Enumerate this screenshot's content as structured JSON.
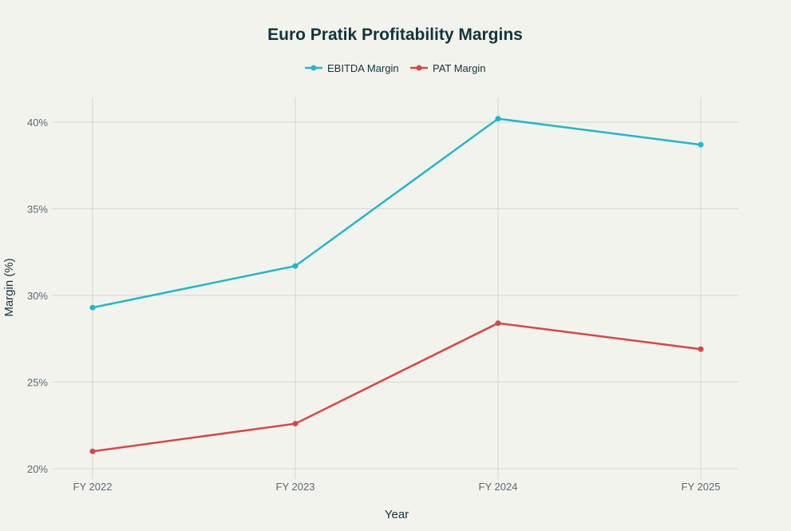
{
  "chart_data": {
    "type": "line",
    "title": "Euro Pratik Profitability Margins",
    "xlabel": "Year",
    "ylabel": "Margin (%)",
    "categories": [
      "FY 2022",
      "FY 2023",
      "FY 2024",
      "FY 2025"
    ],
    "series": [
      {
        "name": "EBITDA Margin",
        "color": "#1FB8CD",
        "values": [
          29.3,
          31.7,
          40.2,
          38.7
        ]
      },
      {
        "name": "PAT Margin",
        "color": "#DB4545",
        "values": [
          21.0,
          22.6,
          28.4,
          26.9
        ]
      }
    ],
    "ylim": [
      20,
      41.5
    ],
    "yticks": [
      20,
      25,
      30,
      35,
      40
    ],
    "ytick_labels": [
      "20%",
      "25%",
      "30%",
      "35%",
      "40%"
    ],
    "grid": true,
    "legend_position": "top-center"
  }
}
